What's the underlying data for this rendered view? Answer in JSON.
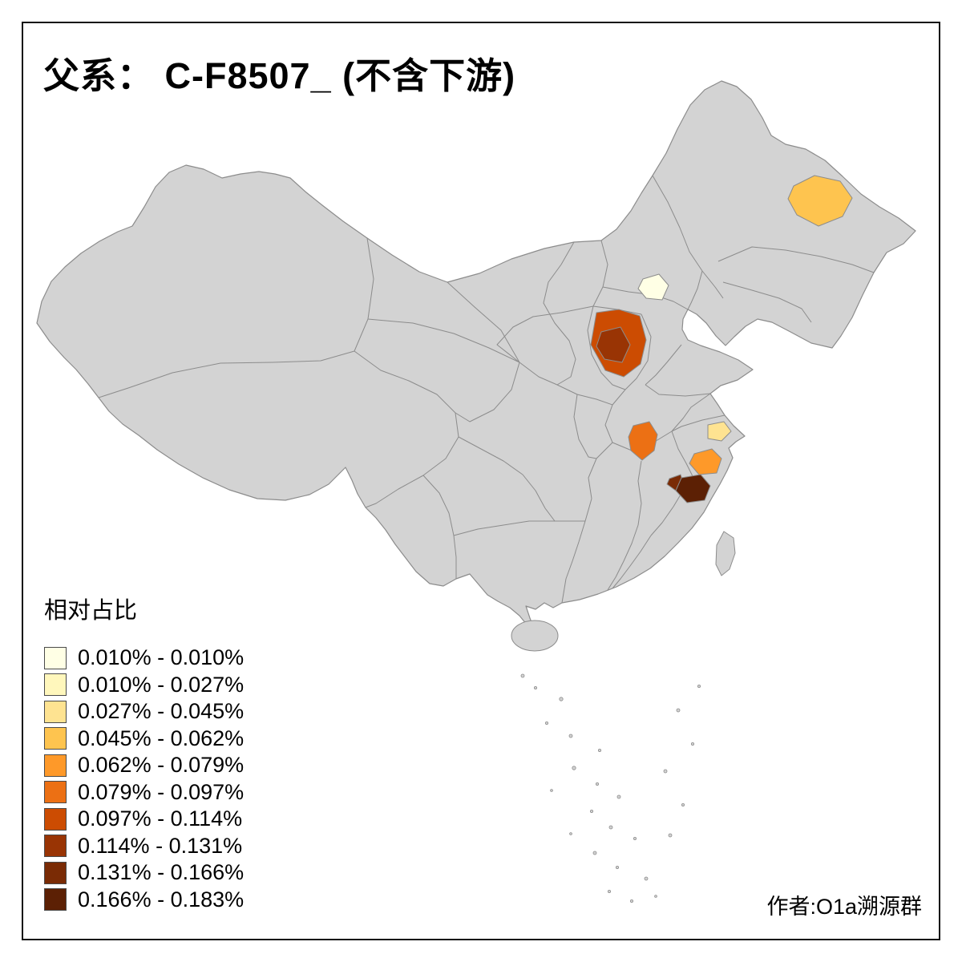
{
  "title": "父系： C-F8507_ (不含下游)",
  "legend": {
    "title": "相对占比",
    "items": [
      {
        "range": "0.010% - 0.010%",
        "color": "#FFFFE5"
      },
      {
        "range": "0.010% - 0.027%",
        "color": "#FFF7BC"
      },
      {
        "range": "0.027% - 0.045%",
        "color": "#FEE391"
      },
      {
        "range": "0.045% - 0.062%",
        "color": "#FEC44F"
      },
      {
        "range": "0.062% - 0.079%",
        "color": "#FE9929"
      },
      {
        "range": "0.079% - 0.097%",
        "color": "#EC7014"
      },
      {
        "range": "0.097% - 0.114%",
        "color": "#CC4C02"
      },
      {
        "range": "0.114% - 0.131%",
        "color": "#993404"
      },
      {
        "range": "0.131% - 0.166%",
        "color": "#7A2B05"
      },
      {
        "range": "0.166% - 0.183%",
        "color": "#5C2004"
      }
    ]
  },
  "attribution": "作者:O1a溯源群",
  "map": {
    "land_color": "#D3D3D3",
    "border_color": "#8C8C8C",
    "background": "#FFFFFF",
    "regions": [
      {
        "name": "beijing-patch",
        "bin": 1
      },
      {
        "name": "shanghai-patch",
        "bin": 3
      },
      {
        "name": "heilongjiang-patch",
        "bin": 4
      },
      {
        "name": "zhejiang-north-patch",
        "bin": 5
      },
      {
        "name": "hubei-patch",
        "bin": 6
      },
      {
        "name": "shanxi-patch",
        "bin": 7
      },
      {
        "name": "shanxi-core-patch",
        "bin": 8
      },
      {
        "name": "zhejiang-west-spur",
        "bin": 9
      },
      {
        "name": "zhejiang-dark-patch",
        "bin": 10
      }
    ]
  }
}
